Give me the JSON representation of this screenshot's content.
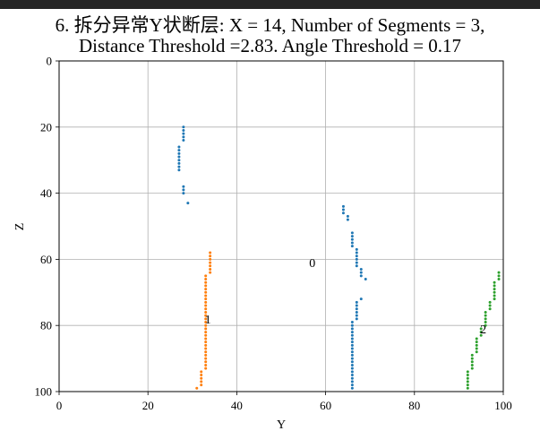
{
  "chart_data": {
    "type": "scatter",
    "title_line1": "6. 拆分异常Y状断层: X = 14, Number of Segments = 3,",
    "title_line2": "Distance Threshold =2.83. Angle Threshold = 0.17",
    "xlabel": "Y",
    "ylabel": "Z",
    "xlim": [
      0,
      100
    ],
    "ylim": [
      100,
      0
    ],
    "y_inverted": true,
    "grid": true,
    "x_ticks": [
      0,
      20,
      40,
      60,
      80,
      100
    ],
    "y_ticks": [
      0,
      20,
      40,
      60,
      80,
      100
    ],
    "series": [
      {
        "color": "#1f77b4",
        "points": [
          [
            28,
            20
          ],
          [
            28,
            21
          ],
          [
            28,
            22
          ],
          [
            28,
            23
          ],
          [
            28,
            24
          ],
          [
            27,
            26
          ],
          [
            27,
            27
          ],
          [
            27,
            28
          ],
          [
            27,
            29
          ],
          [
            27,
            30
          ],
          [
            27,
            31
          ],
          [
            27,
            32
          ],
          [
            27,
            33
          ],
          [
            28,
            38
          ],
          [
            28,
            39
          ],
          [
            28,
            40
          ],
          [
            29,
            43
          ],
          [
            64,
            44
          ],
          [
            64,
            45
          ],
          [
            64,
            46
          ],
          [
            65,
            47
          ],
          [
            65,
            48
          ],
          [
            66,
            52
          ],
          [
            66,
            53
          ],
          [
            66,
            54
          ],
          [
            66,
            55
          ],
          [
            66,
            56
          ],
          [
            67,
            57
          ],
          [
            67,
            58
          ],
          [
            67,
            59
          ],
          [
            67,
            60
          ],
          [
            67,
            61
          ],
          [
            67,
            62
          ],
          [
            68,
            63
          ],
          [
            68,
            64
          ],
          [
            68,
            65
          ],
          [
            69,
            66
          ],
          [
            68,
            72
          ],
          [
            67,
            73
          ],
          [
            67,
            74
          ],
          [
            67,
            75
          ],
          [
            67,
            76
          ],
          [
            67,
            77
          ],
          [
            67,
            78
          ],
          [
            66,
            79
          ],
          [
            66,
            80
          ],
          [
            66,
            81
          ],
          [
            66,
            82
          ],
          [
            66,
            83
          ],
          [
            66,
            84
          ],
          [
            66,
            85
          ],
          [
            66,
            86
          ],
          [
            66,
            87
          ],
          [
            66,
            88
          ],
          [
            66,
            89
          ],
          [
            66,
            90
          ],
          [
            66,
            91
          ],
          [
            66,
            92
          ],
          [
            66,
            93
          ],
          [
            66,
            94
          ],
          [
            66,
            95
          ],
          [
            66,
            96
          ],
          [
            66,
            97
          ],
          [
            66,
            98
          ],
          [
            66,
            99
          ]
        ]
      },
      {
        "color": "#ff7f0e",
        "points": [
          [
            34,
            58
          ],
          [
            34,
            59
          ],
          [
            34,
            60
          ],
          [
            34,
            61
          ],
          [
            34,
            62
          ],
          [
            34,
            63
          ],
          [
            34,
            64
          ],
          [
            33,
            65
          ],
          [
            33,
            66
          ],
          [
            33,
            67
          ],
          [
            33,
            68
          ],
          [
            33,
            69
          ],
          [
            33,
            70
          ],
          [
            33,
            71
          ],
          [
            33,
            72
          ],
          [
            33,
            73
          ],
          [
            33,
            74
          ],
          [
            33,
            75
          ],
          [
            33,
            76
          ],
          [
            33,
            77
          ],
          [
            33,
            78
          ],
          [
            33,
            79
          ],
          [
            33,
            80
          ],
          [
            33,
            81
          ],
          [
            33,
            82
          ],
          [
            33,
            83
          ],
          [
            33,
            84
          ],
          [
            33,
            85
          ],
          [
            33,
            86
          ],
          [
            33,
            87
          ],
          [
            33,
            88
          ],
          [
            33,
            89
          ],
          [
            33,
            90
          ],
          [
            33,
            91
          ],
          [
            33,
            92
          ],
          [
            33,
            93
          ],
          [
            32,
            94
          ],
          [
            32,
            95
          ],
          [
            32,
            96
          ],
          [
            32,
            97
          ],
          [
            32,
            98
          ],
          [
            31,
            99
          ]
        ]
      },
      {
        "color": "#2ca02c",
        "points": [
          [
            99,
            64
          ],
          [
            99,
            65
          ],
          [
            99,
            66
          ],
          [
            98,
            67
          ],
          [
            98,
            68
          ],
          [
            98,
            69
          ],
          [
            98,
            70
          ],
          [
            98,
            71
          ],
          [
            98,
            72
          ],
          [
            97,
            73
          ],
          [
            97,
            74
          ],
          [
            97,
            75
          ],
          [
            96,
            76
          ],
          [
            96,
            77
          ],
          [
            96,
            78
          ],
          [
            96,
            79
          ],
          [
            96,
            80
          ],
          [
            95,
            81
          ],
          [
            95,
            82
          ],
          [
            95,
            83
          ],
          [
            94,
            84
          ],
          [
            94,
            85
          ],
          [
            94,
            86
          ],
          [
            94,
            87
          ],
          [
            94,
            88
          ],
          [
            93,
            89
          ],
          [
            93,
            90
          ],
          [
            93,
            91
          ],
          [
            93,
            92
          ],
          [
            93,
            93
          ],
          [
            92,
            94
          ],
          [
            92,
            95
          ],
          [
            92,
            96
          ],
          [
            92,
            97
          ],
          [
            92,
            98
          ],
          [
            92,
            99
          ]
        ]
      }
    ],
    "annotations": [
      {
        "text": "0",
        "x": 57,
        "y": 61
      },
      {
        "text": "1",
        "x": 33.5,
        "y": 78
      },
      {
        "text": "2",
        "x": 95.5,
        "y": 81
      }
    ]
  }
}
